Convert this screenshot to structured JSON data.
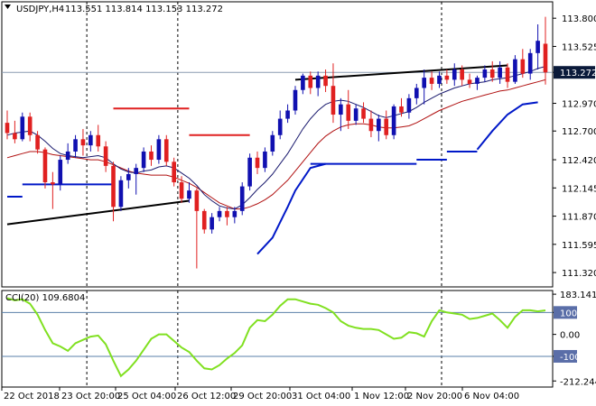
{
  "header": {
    "symbol": "USDJPY,H4",
    "ohlc": "113.551 113.814 113.153 113.272"
  },
  "cci_header": "CCI(20) 109.6804",
  "current_price_label": "113.272",
  "colors": {
    "bull": "#1010b0",
    "bear": "#e02020",
    "ma_fast": "#1a1a6e",
    "ma_slow": "#b01010",
    "blue_line": "#0018c8",
    "red_line": "#e02020",
    "trend": "#000000",
    "cci": "#80e020",
    "grid": "#5a6ea8",
    "level": "#5a7fa8",
    "price_line": "#8a9ab0",
    "label_bg": "#0a1a3a"
  },
  "chart_data": [
    {
      "type": "candlestick",
      "ylim": [
        111.18,
        113.96
      ],
      "y_ticks": [
        "113.800",
        "113.525",
        "113.272",
        "112.970",
        "112.700",
        "112.420",
        "112.145",
        "111.870",
        "111.595",
        "111.320"
      ],
      "x_ticks": [
        "22 Oct 2018",
        "23 Oct 20:00",
        "25 Oct 04:00",
        "26 Oct 12:00",
        "29 Oct 20:00",
        "31 Oct 04:00",
        "1 Nov 12:00",
        "2 Nov 20:00",
        "6 Nov 04:00"
      ],
      "candles": [
        [
          112.78,
          112.9,
          112.62,
          112.68
        ],
        [
          112.68,
          112.8,
          112.58,
          112.62
        ],
        [
          112.62,
          112.88,
          112.6,
          112.84
        ],
        [
          112.84,
          112.88,
          112.6,
          112.66
        ],
        [
          112.66,
          112.7,
          112.48,
          112.52
        ],
        [
          112.52,
          112.54,
          112.14,
          112.2
        ],
        [
          112.2,
          112.3,
          111.94,
          112.18
        ],
        [
          112.18,
          112.46,
          112.12,
          112.42
        ],
        [
          112.42,
          112.58,
          112.38,
          112.5
        ],
        [
          112.5,
          112.66,
          112.44,
          112.62
        ],
        [
          112.62,
          112.72,
          112.46,
          112.56
        ],
        [
          112.56,
          112.7,
          112.5,
          112.66
        ],
        [
          112.66,
          112.76,
          112.5,
          112.55
        ],
        [
          112.55,
          112.6,
          112.3,
          112.36
        ],
        [
          112.36,
          112.4,
          111.82,
          111.96
        ],
        [
          111.96,
          112.26,
          111.92,
          112.22
        ],
        [
          112.22,
          112.34,
          112.14,
          112.28
        ],
        [
          112.28,
          112.38,
          112.08,
          112.34
        ],
        [
          112.34,
          112.54,
          112.3,
          112.5
        ],
        [
          112.5,
          112.56,
          112.36,
          112.42
        ],
        [
          112.42,
          112.66,
          112.38,
          112.62
        ],
        [
          112.62,
          112.66,
          112.36,
          112.4
        ],
        [
          112.4,
          112.44,
          112.16,
          112.2
        ],
        [
          112.2,
          112.26,
          112.0,
          112.04
        ],
        [
          112.04,
          112.2,
          112.0,
          112.12
        ],
        [
          112.12,
          112.14,
          111.36,
          111.92
        ],
        [
          111.92,
          111.94,
          111.7,
          111.74
        ],
        [
          111.74,
          111.9,
          111.7,
          111.86
        ],
        [
          111.86,
          111.96,
          111.82,
          111.92
        ],
        [
          111.92,
          111.96,
          111.78,
          111.86
        ],
        [
          111.86,
          111.96,
          111.8,
          111.92
        ],
        [
          111.92,
          112.2,
          111.88,
          112.16
        ],
        [
          112.16,
          112.48,
          112.12,
          112.44
        ],
        [
          112.44,
          112.5,
          112.28,
          112.34
        ],
        [
          112.34,
          112.54,
          112.3,
          112.5
        ],
        [
          112.5,
          112.7,
          112.46,
          112.66
        ],
        [
          112.66,
          112.9,
          112.62,
          112.82
        ],
        [
          112.82,
          112.96,
          112.78,
          112.9
        ],
        [
          112.9,
          113.14,
          112.86,
          113.1
        ],
        [
          113.1,
          113.26,
          113.06,
          113.24
        ],
        [
          113.24,
          113.28,
          113.06,
          113.12
        ],
        [
          113.12,
          113.28,
          113.04,
          113.24
        ],
        [
          113.24,
          113.3,
          113.08,
          113.14
        ],
        [
          113.14,
          113.36,
          112.78,
          112.86
        ],
        [
          112.86,
          113.02,
          112.7,
          112.96
        ],
        [
          112.96,
          113.1,
          112.72,
          112.8
        ],
        [
          112.8,
          112.96,
          112.76,
          112.92
        ],
        [
          112.92,
          112.98,
          112.78,
          112.82
        ],
        [
          112.82,
          112.9,
          112.64,
          112.7
        ],
        [
          112.7,
          112.86,
          112.6,
          112.82
        ],
        [
          112.82,
          112.9,
          112.62,
          112.66
        ],
        [
          112.66,
          112.96,
          112.62,
          112.94
        ],
        [
          112.94,
          113.02,
          112.84,
          112.88
        ],
        [
          112.88,
          113.06,
          112.82,
          113.02
        ],
        [
          113.02,
          113.16,
          112.96,
          113.12
        ],
        [
          113.12,
          113.3,
          112.96,
          113.22
        ],
        [
          113.22,
          113.28,
          113.1,
          113.16
        ],
        [
          113.16,
          113.28,
          113.12,
          113.24
        ],
        [
          113.24,
          113.3,
          113.16,
          113.2
        ],
        [
          113.2,
          113.36,
          113.14,
          113.3
        ],
        [
          113.3,
          113.34,
          113.14,
          113.2
        ],
        [
          113.2,
          113.26,
          113.12,
          113.16
        ],
        [
          113.16,
          113.24,
          113.1,
          113.22
        ],
        [
          113.22,
          113.34,
          113.18,
          113.3
        ],
        [
          113.3,
          113.38,
          113.18,
          113.22
        ],
        [
          113.22,
          113.38,
          113.16,
          113.32
        ],
        [
          113.32,
          113.36,
          113.12,
          113.18
        ],
        [
          113.18,
          113.44,
          113.16,
          113.4
        ],
        [
          113.4,
          113.5,
          113.22,
          113.26
        ],
        [
          113.26,
          113.5,
          113.2,
          113.46
        ],
        [
          113.46,
          113.74,
          113.3,
          113.58
        ],
        [
          113.551,
          113.814,
          113.153,
          113.272
        ]
      ],
      "ma_fast": [
        112.66,
        112.68,
        112.69,
        112.7,
        112.66,
        112.6,
        112.53,
        112.48,
        112.46,
        112.45,
        112.44,
        112.45,
        112.46,
        112.44,
        112.38,
        112.33,
        112.3,
        112.29,
        112.31,
        112.32,
        112.35,
        112.36,
        112.34,
        112.29,
        112.24,
        112.17,
        112.08,
        112.02,
        111.97,
        111.95,
        111.94,
        111.98,
        112.05,
        112.13,
        112.2,
        112.28,
        112.38,
        112.48,
        112.6,
        112.72,
        112.82,
        112.9,
        112.96,
        112.99,
        113.0,
        112.99,
        112.96,
        112.93,
        112.89,
        112.85,
        112.83,
        112.85,
        112.87,
        112.89,
        112.93,
        112.98,
        113.02,
        113.06,
        113.09,
        113.12,
        113.14,
        113.16,
        113.17,
        113.18,
        113.2,
        113.21,
        113.22,
        113.24,
        113.26,
        113.28,
        113.31,
        113.33
      ],
      "ma_slow": [
        112.44,
        112.46,
        112.48,
        112.5,
        112.5,
        112.49,
        112.47,
        112.46,
        112.45,
        112.44,
        112.43,
        112.42,
        112.42,
        112.4,
        112.37,
        112.34,
        112.31,
        112.29,
        112.28,
        112.27,
        112.27,
        112.27,
        112.25,
        112.22,
        112.19,
        112.15,
        112.1,
        112.05,
        112.0,
        111.97,
        111.94,
        111.94,
        111.96,
        111.99,
        112.03,
        112.08,
        112.15,
        112.22,
        112.31,
        112.4,
        112.49,
        112.58,
        112.65,
        112.7,
        112.74,
        112.76,
        112.77,
        112.77,
        112.76,
        112.74,
        112.73,
        112.73,
        112.74,
        112.75,
        112.78,
        112.82,
        112.86,
        112.9,
        112.93,
        112.96,
        112.99,
        113.01,
        113.03,
        113.05,
        113.07,
        113.09,
        113.1,
        113.12,
        113.14,
        113.16,
        113.18,
        113.2
      ],
      "red_steps": [
        [
          14,
          24,
          112.92
        ],
        [
          24,
          32,
          112.66
        ]
      ],
      "blue_steps": [
        [
          0,
          2,
          112.06
        ],
        [
          2,
          14,
          112.18
        ],
        [
          40,
          54,
          112.38
        ],
        [
          54,
          58,
          112.42
        ],
        [
          58,
          62,
          112.5
        ]
      ],
      "blue_rise": [
        [
          33,
          111.5
        ],
        [
          35,
          111.66
        ],
        [
          37,
          111.96
        ],
        [
          38,
          112.12
        ],
        [
          40,
          112.34
        ],
        [
          42,
          112.38
        ]
      ],
      "blue_tail": [
        [
          62,
          112.52
        ],
        [
          64,
          112.7
        ],
        [
          66,
          112.86
        ],
        [
          68,
          112.96
        ],
        [
          70,
          112.98
        ]
      ],
      "trendlines": [
        [
          [
            0,
            111.79
          ],
          [
            24,
            112.02
          ]
        ],
        [
          [
            38,
            113.2
          ],
          [
            66,
            113.34
          ]
        ]
      ]
    },
    {
      "type": "line",
      "series": [
        {
          "name": "CCI(20)",
          "values": [
            165,
            155,
            160,
            140,
            90,
            20,
            -40,
            -55,
            -75,
            -40,
            -25,
            -10,
            -5,
            -45,
            -120,
            -190,
            -160,
            -120,
            -70,
            -20,
            0,
            0,
            -30,
            -60,
            -80,
            -120,
            -155,
            -160,
            -140,
            -110,
            -85,
            -50,
            30,
            65,
            60,
            90,
            130,
            160,
            160,
            150,
            140,
            135,
            120,
            100,
            60,
            40,
            30,
            25,
            25,
            20,
            0,
            -20,
            -15,
            10,
            5,
            -10,
            60,
            110,
            100,
            95,
            90,
            70,
            75,
            85,
            95,
            65,
            30,
            80,
            110,
            110,
            105,
            109.68
          ]
        }
      ],
      "ylim": [
        -240,
        200
      ],
      "y_ticks": [
        "183.1415",
        "100",
        "0.00",
        "-100",
        "-212.2445"
      ],
      "levels": [
        100,
        -100
      ]
    }
  ]
}
